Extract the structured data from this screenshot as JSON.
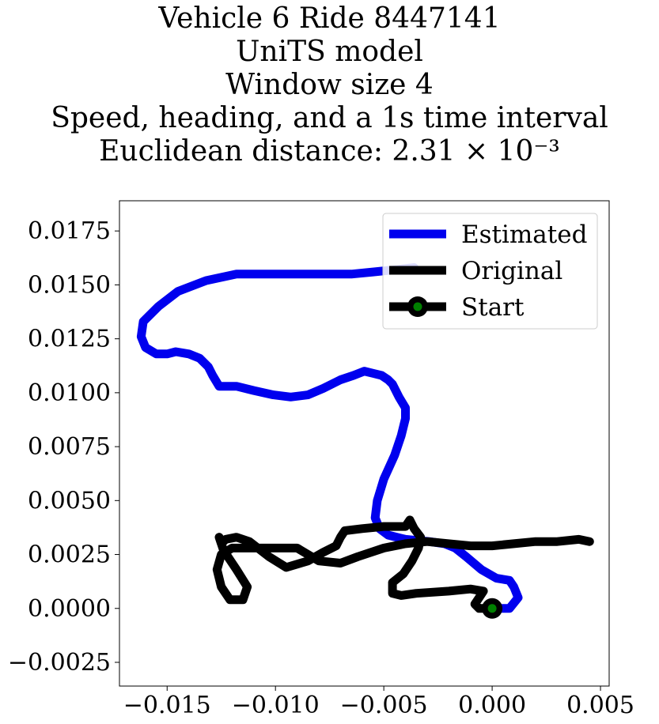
{
  "chart_data": {
    "type": "line",
    "title_lines": [
      "Vehicle 6 Ride 8447141",
      "UniTS model",
      "Window size 4",
      "Speed, heading, and a 1s time interval",
      "Euclidean distance: 2.31 × 10⁻³"
    ],
    "xlabel": "",
    "ylabel": "",
    "xlim": [
      -0.0172,
      0.0054
    ],
    "ylim": [
      -0.0036,
      0.0189
    ],
    "xticks": [
      -0.015,
      -0.01,
      -0.005,
      0.0,
      0.005
    ],
    "xtick_labels": [
      "−0.015",
      "−0.010",
      "−0.005",
      "0.000",
      "0.005"
    ],
    "yticks": [
      -0.0025,
      0.0,
      0.0025,
      0.005,
      0.0075,
      0.01,
      0.0125,
      0.015,
      0.0175
    ],
    "ytick_labels": [
      "−0.0025",
      "0.0000",
      "0.0025",
      "0.0050",
      "0.0075",
      "0.0100",
      "0.0125",
      "0.0150",
      "0.0175"
    ],
    "grid": false,
    "legend_position": "top-right",
    "legend": [
      "Estimated",
      "Original",
      "Start"
    ],
    "series": [
      {
        "name": "Estimated",
        "color": "#0000ee",
        "points": [
          [
            0.0,
            0.0
          ],
          [
            0.0008,
            0.0
          ],
          [
            0.0012,
            0.0005
          ],
          [
            0.001,
            0.001
          ],
          [
            0.0008,
            0.0013
          ],
          [
            0.0002,
            0.0014
          ],
          [
            -0.0005,
            0.0018
          ],
          [
            -0.0012,
            0.0024
          ],
          [
            -0.0017,
            0.0028
          ],
          [
            -0.0022,
            0.003
          ],
          [
            -0.0029,
            0.0031
          ],
          [
            -0.004,
            0.0032
          ],
          [
            -0.0048,
            0.0034
          ],
          [
            -0.0052,
            0.0037
          ],
          [
            -0.0054,
            0.0042
          ],
          [
            -0.0053,
            0.005
          ],
          [
            -0.005,
            0.006
          ],
          [
            -0.0045,
            0.0071
          ],
          [
            -0.0042,
            0.008
          ],
          [
            -0.004,
            0.0088
          ],
          [
            -0.004,
            0.0093
          ],
          [
            -0.0043,
            0.0098
          ],
          [
            -0.0046,
            0.0104
          ],
          [
            -0.0048,
            0.0106
          ],
          [
            -0.0051,
            0.0108
          ],
          [
            -0.0055,
            0.0109
          ],
          [
            -0.0059,
            0.011
          ],
          [
            -0.0064,
            0.0108
          ],
          [
            -0.007,
            0.0106
          ],
          [
            -0.0078,
            0.0102
          ],
          [
            -0.0085,
            0.0099
          ],
          [
            -0.0093,
            0.0098
          ],
          [
            -0.0101,
            0.0099
          ],
          [
            -0.011,
            0.0101
          ],
          [
            -0.0118,
            0.0103
          ],
          [
            -0.0126,
            0.0103
          ],
          [
            -0.0129,
            0.0108
          ],
          [
            -0.0131,
            0.0112
          ],
          [
            -0.0135,
            0.0116
          ],
          [
            -0.014,
            0.0118
          ],
          [
            -0.0146,
            0.0119
          ],
          [
            -0.015,
            0.0118
          ],
          [
            -0.0155,
            0.0118
          ],
          [
            -0.016,
            0.0121
          ],
          [
            -0.0162,
            0.0126
          ],
          [
            -0.0161,
            0.0133
          ],
          [
            -0.0154,
            0.014
          ],
          [
            -0.0145,
            0.0147
          ],
          [
            -0.0132,
            0.0152
          ],
          [
            -0.0118,
            0.0155
          ],
          [
            -0.01,
            0.0155
          ],
          [
            -0.008,
            0.0155
          ],
          [
            -0.0065,
            0.0155
          ],
          [
            -0.0055,
            0.0156
          ],
          [
            -0.0045,
            0.0157
          ],
          [
            -0.0036,
            0.0158
          ]
        ]
      },
      {
        "name": "Original",
        "color": "#000000",
        "points": [
          [
            0.0,
            0.0
          ],
          [
            -0.0006,
            0.0
          ],
          [
            -0.0008,
            0.0002
          ],
          [
            -0.0006,
            0.0005
          ],
          [
            -0.0004,
            0.0008
          ],
          [
            -0.001,
            0.0009
          ],
          [
            -0.002,
            0.0008
          ],
          [
            -0.0035,
            0.0007
          ],
          [
            -0.0042,
            0.0006
          ],
          [
            -0.0046,
            0.0007
          ],
          [
            -0.0046,
            0.0012
          ],
          [
            -0.0041,
            0.0016
          ],
          [
            -0.0037,
            0.0022
          ],
          [
            -0.0034,
            0.0028
          ],
          [
            -0.0033,
            0.0033
          ],
          [
            -0.0036,
            0.0037
          ],
          [
            -0.0038,
            0.0041
          ],
          [
            -0.004,
            0.0038
          ],
          [
            -0.005,
            0.0038
          ],
          [
            -0.006,
            0.0037
          ],
          [
            -0.0068,
            0.0036
          ],
          [
            -0.007,
            0.0033
          ],
          [
            -0.0072,
            0.0029
          ],
          [
            -0.0078,
            0.0026
          ],
          [
            -0.0085,
            0.0022
          ],
          [
            -0.0095,
            0.0019
          ],
          [
            -0.0103,
            0.0024
          ],
          [
            -0.0112,
            0.0031
          ],
          [
            -0.0118,
            0.0033
          ],
          [
            -0.0123,
            0.0032
          ],
          [
            -0.0125,
            0.003
          ],
          [
            -0.0126,
            0.0033
          ],
          [
            -0.0124,
            0.0027
          ],
          [
            -0.0118,
            0.0018
          ],
          [
            -0.0113,
            0.001
          ],
          [
            -0.0115,
            0.0004
          ],
          [
            -0.0121,
            0.0004
          ],
          [
            -0.0125,
            0.001
          ],
          [
            -0.0127,
            0.0018
          ],
          [
            -0.0125,
            0.0025
          ],
          [
            -0.012,
            0.0028
          ],
          [
            -0.0105,
            0.0028
          ],
          [
            -0.009,
            0.0028
          ],
          [
            -0.008,
            0.0022
          ],
          [
            -0.007,
            0.0021
          ],
          [
            -0.0062,
            0.0024
          ],
          [
            -0.005,
            0.0028
          ],
          [
            -0.004,
            0.003
          ],
          [
            -0.003,
            0.0031
          ],
          [
            -0.001,
            0.0029
          ],
          [
            0.0,
            0.0029
          ],
          [
            0.001,
            0.003
          ],
          [
            0.002,
            0.0031
          ],
          [
            0.003,
            0.0031
          ],
          [
            0.004,
            0.0032
          ],
          [
            0.0045,
            0.0031
          ]
        ]
      }
    ],
    "start_point": {
      "name": "Start",
      "x": 0.0,
      "y": 0.0,
      "color": "#008000"
    }
  }
}
